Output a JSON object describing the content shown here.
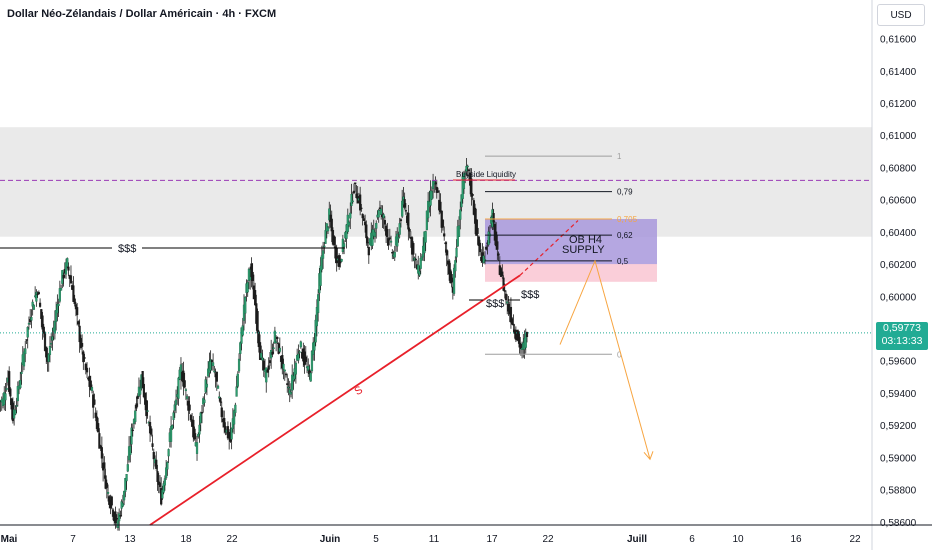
{
  "header": {
    "title": "Dollar Néo-Zélandais / Dollar Américain · 4h · FXCM"
  },
  "price_axis": {
    "currency": "USD"
  },
  "last_price": {
    "value": "0,59773",
    "countdown": "03:13:33"
  },
  "colors": {
    "up": "#22ab94",
    "down": "#131722",
    "candle_body": "#2a2a2a",
    "trendline": "#e8202a",
    "supply_zone": "#7b86e8",
    "supply_zone_lower": "#f7b3c4",
    "fib_line": "#000000",
    "fib_0705": "#f7a541",
    "arrow": "#f7a541",
    "purple_dash": "#9b3bb5",
    "grey_zone": "#e6e6e6"
  },
  "chart_data": {
    "type": "candlestick",
    "title": "Dollar Néo-Zélandais / Dollar Américain · 4h · FXCM",
    "y_ticks": [
      "0,61600",
      "0,61400",
      "0,61200",
      "0,61000",
      "0,60800",
      "0,60600",
      "0,60400",
      "0,60200",
      "0,60000",
      "0,59800",
      "0,59600",
      "0,59400",
      "0,59200",
      "0,59000",
      "0,58800",
      "0,58600"
    ],
    "x_ticks": [
      "Mai",
      "7",
      "13",
      "18",
      "22",
      "Juin",
      "5",
      "11",
      "17",
      "22",
      "Juill",
      "6",
      "10",
      "16",
      "22"
    ],
    "ylim": [
      0.5858,
      0.6179
    ],
    "price_path": [
      0.5935,
      0.595,
      0.5925,
      0.594,
      0.596,
      0.598,
      0.5995,
      0.6005,
      0.598,
      0.596,
      0.5975,
      0.5995,
      0.6012,
      0.602,
      0.6005,
      0.5985,
      0.5965,
      0.595,
      0.594,
      0.592,
      0.59,
      0.588,
      0.587,
      0.5858,
      0.587,
      0.589,
      0.5915,
      0.5935,
      0.595,
      0.593,
      0.591,
      0.589,
      0.5875,
      0.5895,
      0.5918,
      0.5935,
      0.5955,
      0.594,
      0.5925,
      0.5905,
      0.5925,
      0.5945,
      0.596,
      0.595,
      0.593,
      0.5918,
      0.591,
      0.5935,
      0.597,
      0.6,
      0.6018,
      0.5995,
      0.5965,
      0.595,
      0.596,
      0.5975,
      0.5965,
      0.595,
      0.594,
      0.5955,
      0.597,
      0.596,
      0.595,
      0.5975,
      0.601,
      0.6035,
      0.605,
      0.603,
      0.602,
      0.6035,
      0.605,
      0.6068,
      0.606,
      0.6045,
      0.603,
      0.604,
      0.6055,
      0.6048,
      0.6035,
      0.6025,
      0.604,
      0.606,
      0.6045,
      0.6025,
      0.6015,
      0.603,
      0.6055,
      0.607,
      0.6062,
      0.604,
      0.602,
      0.6005,
      0.604,
      0.607,
      0.608,
      0.606,
      0.6035,
      0.602,
      0.6035,
      0.605,
      0.6025,
      0.601,
      0.5995,
      0.5985,
      0.5975,
      0.5965,
      0.5978
    ],
    "annotations": {
      "buyside_liquidity": "Buyside Liquidity",
      "ob_label": "OB H4",
      "supply_label": "SUPPLY",
      "trend_label": "S",
      "liquidity_left": "$$$",
      "liquidity_mid": "$$$",
      "liquidity_right": "$$$"
    },
    "fib_levels": [
      {
        "label": "1",
        "price": 0.6087
      },
      {
        "label": "0,79",
        "price": 0.6065
      },
      {
        "label": "0,705",
        "price": 0.6048
      },
      {
        "label": "0,62",
        "price": 0.6038
      },
      {
        "label": "0,5",
        "price": 0.6022
      },
      {
        "label": "0",
        "price": 0.5964
      }
    ],
    "zones": {
      "grey_liquidity_zone": [
        0.6037,
        0.6105
      ],
      "supply_zone": [
        0.602,
        0.6048
      ],
      "supply_zone_lower": [
        0.6009,
        0.6048
      ],
      "purple_dashed_level": 0.6072,
      "last_price_level": 0.59773
    },
    "trendline": {
      "from": [
        0,
        0.5855
      ],
      "to": [
        1,
        0.6045
      ]
    },
    "projected_move": [
      0.597,
      0.6022,
      0.5905
    ]
  }
}
